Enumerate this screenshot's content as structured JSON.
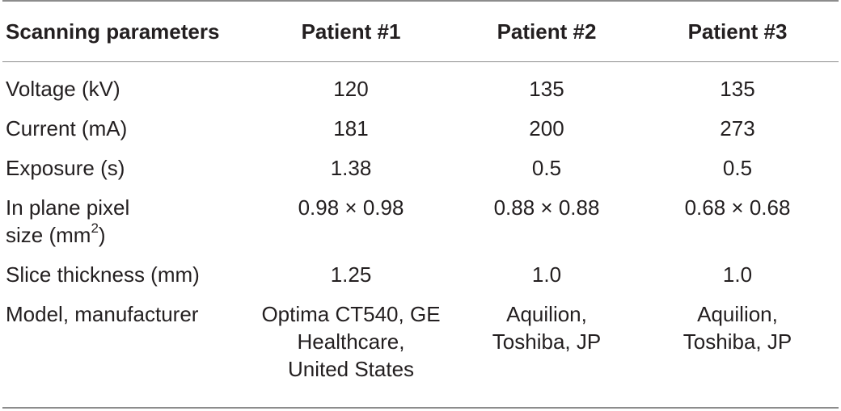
{
  "table": {
    "headers": [
      "Scanning parameters",
      "Patient #1",
      "Patient #2",
      "Patient #3"
    ],
    "rows": [
      {
        "param": [
          "Voltage (kV)"
        ],
        "p1": [
          "120"
        ],
        "p2": [
          "135"
        ],
        "p3": [
          "135"
        ]
      },
      {
        "param": [
          "Current (mA)"
        ],
        "p1": [
          "181"
        ],
        "p2": [
          "200"
        ],
        "p3": [
          "273"
        ]
      },
      {
        "param": [
          "Exposure (s)"
        ],
        "p1": [
          "1.38"
        ],
        "p2": [
          "0.5"
        ],
        "p3": [
          "0.5"
        ]
      },
      {
        "param": [
          "In plane pixel",
          "size (mm",
          "2",
          ")"
        ],
        "p1": [
          "0.98 × 0.98"
        ],
        "p2": [
          "0.88 × 0.88"
        ],
        "p3": [
          "0.68 × 0.68"
        ]
      },
      {
        "param": [
          "Slice thickness (mm)"
        ],
        "p1": [
          "1.25"
        ],
        "p2": [
          "1.0"
        ],
        "p3": [
          "1.0"
        ]
      },
      {
        "param": [
          "Model, manufacturer"
        ],
        "p1": [
          "Optima CT540, GE",
          "Healthcare,",
          "United States"
        ],
        "p2": [
          "Aquilion,",
          "Toshiba, JP"
        ],
        "p3": [
          "Aquilion,",
          "Toshiba, JP"
        ]
      }
    ]
  }
}
